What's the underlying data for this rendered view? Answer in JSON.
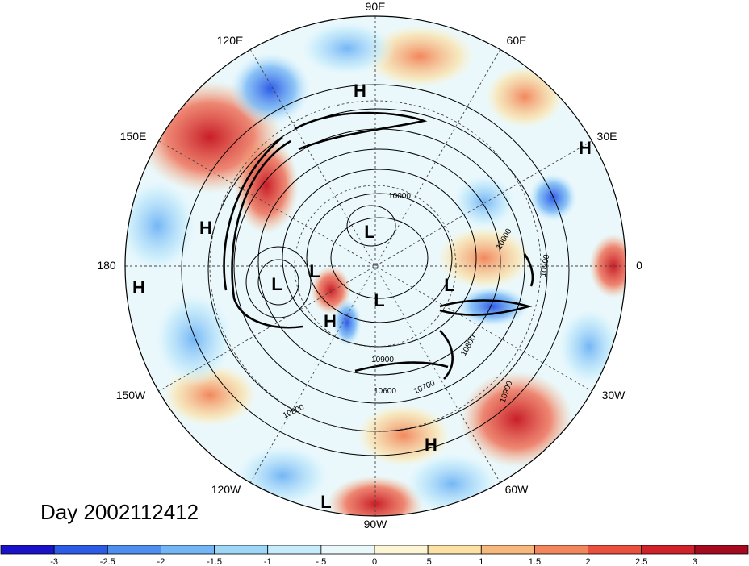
{
  "map": {
    "projection": "polar-stereographic-north",
    "day_label": "Day 2002112412",
    "longitude_labels": [
      "90E",
      "60E",
      "30E",
      "0",
      "30W",
      "60W",
      "90W",
      "120W",
      "150W",
      "180",
      "150E",
      "120E"
    ],
    "pressure_centers": [
      {
        "type": "H"
      },
      {
        "type": "H"
      },
      {
        "type": "H"
      },
      {
        "type": "H"
      },
      {
        "type": "H"
      },
      {
        "type": "H"
      },
      {
        "type": "L"
      },
      {
        "type": "L"
      },
      {
        "type": "L"
      },
      {
        "type": "L"
      },
      {
        "type": "L"
      },
      {
        "type": "L"
      }
    ],
    "contour_labels": [
      "10000",
      "10900",
      "10800",
      "10700",
      "10600",
      "10900",
      "10800",
      "10900",
      "10000"
    ]
  },
  "colorbar": {
    "colors": [
      "#1a12c8",
      "#2e5be6",
      "#4f8ff0",
      "#74b6f5",
      "#9ed6f8",
      "#c6ecfb",
      "#eaf8fc",
      "#fdf6d6",
      "#fbe1a6",
      "#f7b87e",
      "#f2875e",
      "#e9503f",
      "#d0222a",
      "#a50a1e"
    ],
    "ticks": [
      "-3",
      "-2.5",
      "-2",
      "-1.5",
      "-1",
      "-.5",
      "0",
      ".5",
      "1",
      "1.5",
      "2",
      "2.5",
      "3"
    ]
  }
}
